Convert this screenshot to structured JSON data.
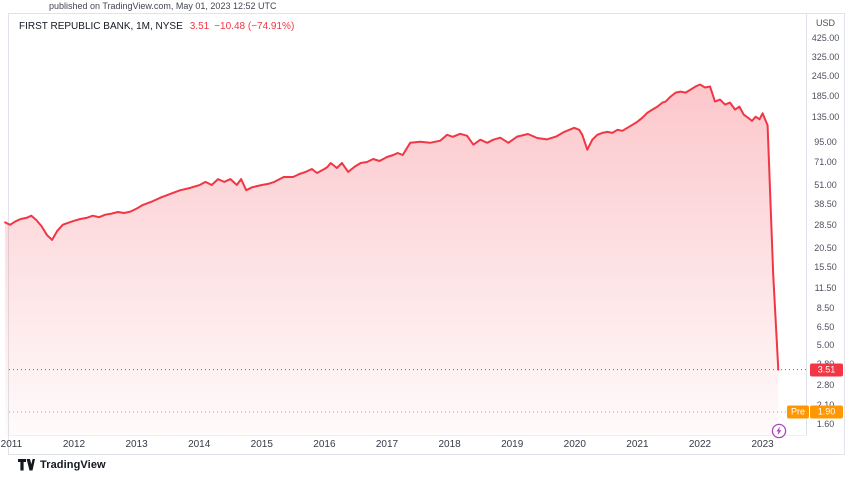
{
  "caption": "published on TradingView.com, May 01, 2023 12:52 UTC",
  "header": {
    "symbol_title": "FIRST REPUBLIC BANK, 1M, NYSE",
    "last_price": "3.51",
    "change": "−10.48 (−74.91%)"
  },
  "axis": {
    "currency_label": "USD",
    "price_ticks": [
      "425.00",
      "325.00",
      "245.00",
      "185.00",
      "135.00",
      "95.00",
      "71.00",
      "51.00",
      "38.50",
      "28.50",
      "20.50",
      "15.50",
      "11.50",
      "8.50",
      "6.50",
      "5.00",
      "3.80",
      "2.80",
      "2.10",
      "1.60"
    ],
    "year_ticks": [
      "2011",
      "2012",
      "2013",
      "2014",
      "2015",
      "2016",
      "2017",
      "2018",
      "2019",
      "2020",
      "2021",
      "2022",
      "2023"
    ]
  },
  "labels": {
    "last_price_badge": "3.51",
    "premarket_prefix": "Pre",
    "premarket_value": "1.90"
  },
  "footer": {
    "brand": "TradingView"
  },
  "icons": {
    "marker": "lightning-bolt-icon"
  },
  "colors": {
    "line": "#F23645",
    "last_price_badge": "#F23645",
    "premarket_badge": "#FF9800",
    "marker_purple": "#AB47BC",
    "border": "#E0E3EB",
    "axis_text": "#4e525e"
  },
  "chart_data": {
    "type": "area",
    "title": "FIRST REPUBLIC BANK, 1M, NYSE",
    "ylabel": "USD",
    "yscale": "log",
    "ylim": [
      1.35,
      600
    ],
    "xlim": [
      2010.85,
      2023.6
    ],
    "grid": false,
    "price_line": 3.51,
    "premarket_price": 1.9,
    "x": [
      2010.9,
      2010.98,
      2011.07,
      2011.15,
      2011.24,
      2011.32,
      2011.4,
      2011.48,
      2011.57,
      2011.65,
      2011.73,
      2011.82,
      2011.9,
      2012,
      2012.1,
      2012.2,
      2012.3,
      2012.4,
      2012.5,
      2012.6,
      2012.7,
      2012.8,
      2012.9,
      2013,
      2013.1,
      2013.25,
      2013.4,
      2013.5,
      2013.6,
      2013.7,
      2013.85,
      2014,
      2014.1,
      2014.2,
      2014.3,
      2014.4,
      2014.5,
      2014.6,
      2014.67,
      2014.75,
      2014.85,
      2015,
      2015.1,
      2015.2,
      2015.35,
      2015.5,
      2015.6,
      2015.7,
      2015.8,
      2015.88,
      2016,
      2016.05,
      2016.1,
      2016.2,
      2016.28,
      2016.38,
      2016.48,
      2016.58,
      2016.68,
      2016.78,
      2016.88,
      2017,
      2017.1,
      2017.17,
      2017.25,
      2017.37,
      2017.53,
      2017.69,
      2017.85,
      2017.96,
      2018.05,
      2018.17,
      2018.28,
      2018.38,
      2018.49,
      2018.6,
      2018.7,
      2018.81,
      2018.94,
      2019.08,
      2019.25,
      2019.4,
      2019.55,
      2019.7,
      2019.83,
      2019.99,
      2020.07,
      2020.12,
      2020.2,
      2020.28,
      2020.36,
      2020.44,
      2020.52,
      2020.6,
      2020.68,
      2020.76,
      2020.84,
      2020.92,
      2021,
      2021.08,
      2021.16,
      2021.24,
      2021.32,
      2021.4,
      2021.45,
      2021.53,
      2021.61,
      2021.69,
      2021.77,
      2021.85,
      2021.93,
      2022,
      2022.08,
      2022.16,
      2022.24,
      2022.32,
      2022.4,
      2022.48,
      2022.56,
      2022.63,
      2022.7,
      2022.78,
      2022.83,
      2022.89,
      2022.95,
      2023,
      2023.08,
      2023.17,
      2023.25
    ],
    "y": [
      29.5,
      28.5,
      30,
      31,
      31.5,
      32.5,
      30.5,
      28,
      24.5,
      22.9,
      26,
      28.5,
      29.3,
      30.2,
      31,
      31.5,
      32.5,
      31.8,
      33,
      33.5,
      34.3,
      33.8,
      34.5,
      36,
      38,
      40,
      42.5,
      44,
      45.5,
      47,
      48.5,
      50.5,
      53,
      50.7,
      55.2,
      53,
      55.2,
      50.7,
      55.2,
      47,
      49.1,
      50.7,
      51.5,
      53,
      56.9,
      56.9,
      59.4,
      61.2,
      63.9,
      60.3,
      63.9,
      65.8,
      69.7,
      64.8,
      69.7,
      61.2,
      65.8,
      69.7,
      70.7,
      73.8,
      71.7,
      76,
      78.2,
      80.5,
      78.2,
      93.3,
      94.7,
      93.3,
      96.1,
      104.7,
      101.7,
      106.2,
      103.2,
      90.7,
      97.5,
      93.3,
      97.5,
      100.4,
      93.3,
      102,
      106,
      100,
      98,
      102,
      109.3,
      115.9,
      112.6,
      104.7,
      84.4,
      97.5,
      104.7,
      107.7,
      109.3,
      107.7,
      112.6,
      111,
      115.9,
      121.1,
      126.5,
      134.1,
      144.2,
      150.7,
      157.4,
      166.8,
      169.2,
      181.9,
      192.8,
      195.6,
      192.8,
      201.5,
      210.5,
      216.8,
      207.5,
      210.5,
      169.2,
      174.2,
      162.1,
      166.8,
      150.7,
      157.4,
      140,
      133,
      128,
      136,
      131,
      143,
      120,
      13.9,
      3.51
    ]
  }
}
